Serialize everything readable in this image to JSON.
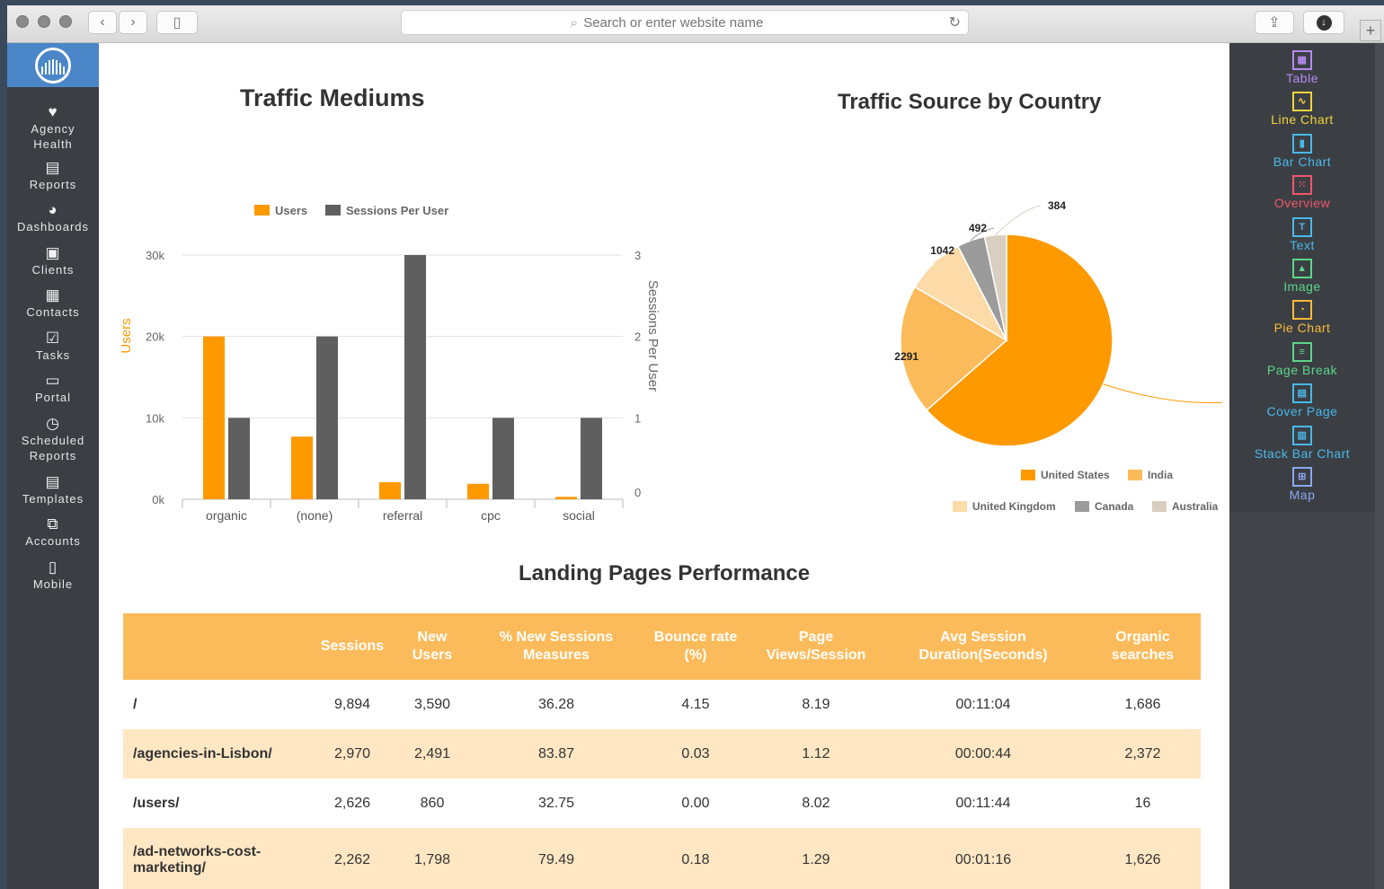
{
  "browser": {
    "address_placeholder": "Search or enter website name"
  },
  "sidebar": {
    "items": [
      {
        "label": "Agency Health",
        "icon": "heart-icon"
      },
      {
        "label": "Reports",
        "icon": "reports-icon"
      },
      {
        "label": "Dashboards",
        "icon": "pie-icon"
      },
      {
        "label": "Clients",
        "icon": "briefcase-icon"
      },
      {
        "label": "Contacts",
        "icon": "contacts-icon"
      },
      {
        "label": "Tasks",
        "icon": "checkbox-icon"
      },
      {
        "label": "Portal",
        "icon": "portal-icon"
      },
      {
        "label": "Scheduled Reports",
        "icon": "clock-icon"
      },
      {
        "label": "Templates",
        "icon": "template-icon"
      },
      {
        "label": "Accounts",
        "icon": "accounts-icon"
      },
      {
        "label": "Mobile",
        "icon": "mobile-icon"
      }
    ]
  },
  "widgets": {
    "items": [
      {
        "label": "Table",
        "color": "#b48cf0",
        "icon": "table-icon",
        "glyph": "▦"
      },
      {
        "label": "Line Chart",
        "color": "#f5d33c",
        "icon": "line-chart-icon",
        "glyph": "∿"
      },
      {
        "label": "Bar Chart",
        "color": "#4ab8e8",
        "icon": "bar-chart-icon",
        "glyph": "▮"
      },
      {
        "label": "Overview",
        "color": "#f0566a",
        "icon": "overview-icon",
        "glyph": "⁙"
      },
      {
        "label": "Text",
        "color": "#4ab8e8",
        "icon": "text-icon",
        "glyph": "T"
      },
      {
        "label": "Image",
        "color": "#5cd68a",
        "icon": "image-icon",
        "glyph": "▲"
      },
      {
        "label": "Pie Chart",
        "color": "#fcbb3a",
        "icon": "pie-chart-icon",
        "glyph": "◔"
      },
      {
        "label": "Page Break",
        "color": "#5cd68a",
        "icon": "page-break-icon",
        "glyph": "≡"
      },
      {
        "label": "Cover Page",
        "color": "#4ab8e8",
        "icon": "cover-page-icon",
        "glyph": "▤"
      },
      {
        "label": "Stack Bar Chart",
        "color": "#4ab8e8",
        "icon": "stack-bar-chart-icon",
        "glyph": "▥"
      },
      {
        "label": "Map",
        "color": "#8aa8f0",
        "icon": "map-icon",
        "glyph": "⊞"
      }
    ]
  },
  "chart_data": [
    {
      "type": "bar",
      "title": "Traffic Mediums",
      "categories": [
        "organic",
        "(none)",
        "referral",
        "cpc",
        "social"
      ],
      "series": [
        {
          "name": "Users",
          "axis": "left",
          "values": [
            20000,
            7700,
            2100,
            1900,
            300
          ],
          "color": "#ff9900"
        },
        {
          "name": "Sessions Per User",
          "axis": "right",
          "values": [
            1,
            2,
            3,
            1,
            1
          ],
          "color": "#5f5f5f"
        }
      ],
      "ylabel": "Users",
      "y2label": "Sessions Per User",
      "ylim": [
        0,
        30000
      ],
      "y2lim": [
        0,
        3
      ],
      "yticks": [
        "0k",
        "10k",
        "20k",
        "30k"
      ],
      "y2ticks": [
        "0",
        "1",
        "2",
        "3"
      ],
      "grid": true,
      "legend": "top"
    },
    {
      "type": "pie",
      "title": "Traffic Source by Country",
      "labels": [
        "United States",
        "India",
        "United Kingdom",
        "Canada",
        "Australia"
      ],
      "values": [
        7340,
        2291,
        1042,
        492,
        384
      ],
      "colors": [
        "#ff9900",
        "#fcbb5a",
        "#fcdba8",
        "#9b9b9b",
        "#d9cfc0"
      ],
      "legend": "bottom"
    }
  ],
  "landing": {
    "title": "Landing Pages Performance",
    "headers": [
      "",
      "Sessions",
      "New Users",
      "% New Sessions Measures",
      "Bounce rate (%)",
      "Page Views/Session",
      "Avg Session Duration(Seconds)",
      "Organic searches"
    ],
    "rows": [
      [
        "/",
        "9,894",
        "3,590",
        "36.28",
        "4.15",
        "8.19",
        "00:11:04",
        "1,686"
      ],
      [
        "/agencies-in-Lisbon/",
        "2,970",
        "2,491",
        "83.87",
        "0.03",
        "1.12",
        "00:00:44",
        "2,372"
      ],
      [
        "/users/",
        "2,626",
        "860",
        "32.75",
        "0.00",
        "8.02",
        "00:11:44",
        "16"
      ],
      [
        "/ad-networks-cost-marketing/",
        "2,262",
        "1,798",
        "79.49",
        "0.18",
        "1.29",
        "00:01:16",
        "1,626"
      ]
    ]
  }
}
